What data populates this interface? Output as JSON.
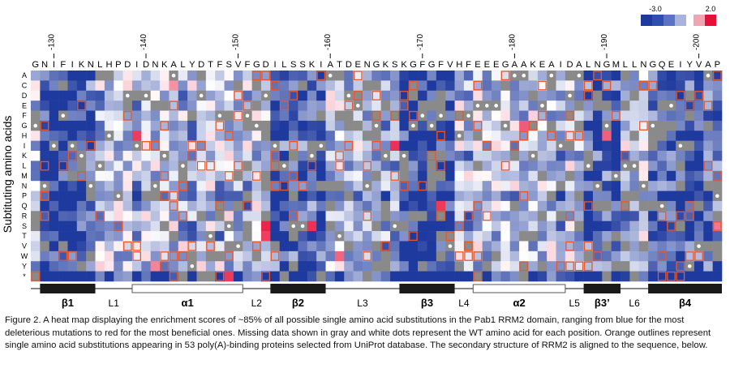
{
  "chart_data": {
    "type": "heatmap",
    "sequence": "GNIFIKNLHPDIDNKALYDTFSVFGDILSSKIATDENGKSKGFGFVHFEEEGAAKEAIDALNGMLLNGQEIYVAP",
    "start_position": 128,
    "position_ticks": [
      130,
      140,
      150,
      160,
      170,
      180,
      190,
      200
    ],
    "position_tick_labels": [
      "-130",
      "-140",
      "-150",
      "-160",
      "-170",
      "-180",
      "-190",
      "-200"
    ],
    "substitutions": [
      "A",
      "C",
      "D",
      "E",
      "F",
      "G",
      "H",
      "I",
      "K",
      "L",
      "M",
      "N",
      "P",
      "Q",
      "R",
      "S",
      "T",
      "V",
      "W",
      "Y",
      "*"
    ],
    "ylabel": "Subtituting amino acids",
    "color_scale": {
      "min": -3.0,
      "max": 2.0,
      "min_label": "-3.0",
      "max_label": "2.0",
      "negative_color": "#1f3a9e",
      "positive_color": "#e8103a",
      "missing_color": "#8a8a8a",
      "outline_color": "#e8582a",
      "wt_dot_color": "#ffffff"
    },
    "secondary_structure": [
      {
        "label": "β1",
        "type": "strand",
        "start": 129,
        "end": 134
      },
      {
        "label": "L1",
        "type": "loop",
        "start": 135,
        "end": 138
      },
      {
        "label": "α1",
        "type": "helix",
        "start": 139,
        "end": 150
      },
      {
        "label": "L2",
        "type": "loop",
        "start": 151,
        "end": 153
      },
      {
        "label": "β2",
        "type": "strand",
        "start": 154,
        "end": 159
      },
      {
        "label": "L3",
        "type": "loop",
        "start": 160,
        "end": 167
      },
      {
        "label": "β3",
        "type": "strand",
        "start": 168,
        "end": 173
      },
      {
        "label": "L4",
        "type": "loop",
        "start": 174,
        "end": 175
      },
      {
        "label": "α2",
        "type": "helix",
        "start": 176,
        "end": 185
      },
      {
        "label": "L5",
        "type": "loop",
        "start": 186,
        "end": 187
      },
      {
        "label": "β3’",
        "type": "strand",
        "start": 188,
        "end": 191
      },
      {
        "label": "L6",
        "type": "loop",
        "start": 192,
        "end": 194
      },
      {
        "label": "β4",
        "type": "strand",
        "start": 195,
        "end": 202
      }
    ]
  },
  "caption": "Figure 2. A heat map displaying the enrichment scores of ~85% of all possible single amino acid substitutions in the Pab1 RRM2 domain, ranging from blue for the most deleterious mutations to red for the most beneficial ones. Missing data shown in gray and white dots represent the WT amino acid for each position. Orange outlines represent single amino acid substitutions appearing in 53 poly(A)-binding proteins selected from UniProt database. The secondary structure of RRM2 is aligned to the sequence, below."
}
